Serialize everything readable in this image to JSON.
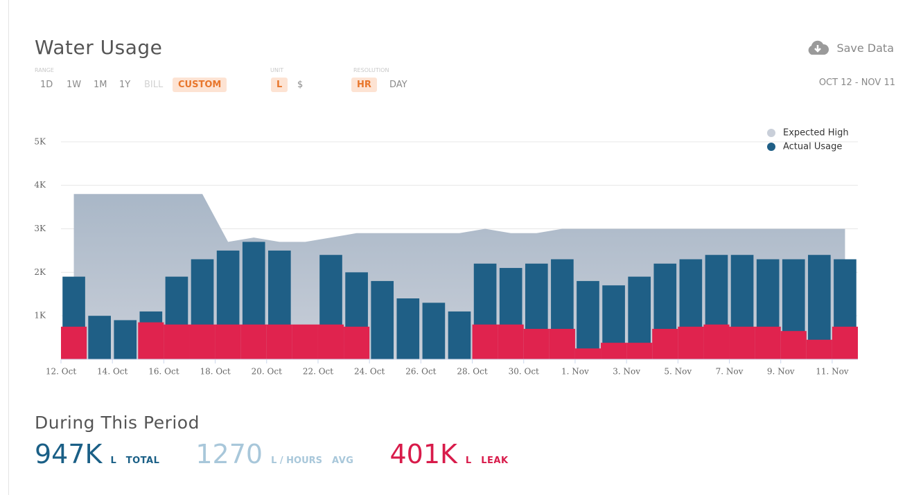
{
  "header": {
    "title": "Water Usage",
    "save": "Save Data",
    "date_range": "OCT 12 - NOV 11",
    "range_caption": "RANGE",
    "range_options": [
      "1D",
      "1W",
      "1M",
      "1Y",
      "BILL",
      "CUSTOM"
    ],
    "unit_caption": "UNIT",
    "unit_options": [
      "L",
      "$"
    ],
    "resolution_caption": "RESOLUTION",
    "resolution_options": [
      "HR",
      "DAY"
    ]
  },
  "summary": {
    "title": "During This Period",
    "total": "947K",
    "total_unit": "L",
    "total_label": "TOTAL",
    "avg": "1270",
    "avg_unit": "L / HOURS",
    "avg_label": "AVG",
    "leak": "401K",
    "leak_unit": "L",
    "leak_label": "LEAK"
  },
  "chart_data": {
    "type": "combo",
    "categories": [
      "12. Oct",
      null,
      "14. Oct",
      null,
      "16. Oct",
      null,
      "18. Oct",
      null,
      "20. Oct",
      null,
      "22. Oct",
      null,
      "24. Oct",
      null,
      "26. Oct",
      null,
      "28. Oct",
      null,
      "30. Oct",
      null,
      "1. Nov",
      null,
      "3. Nov",
      null,
      "5. Nov",
      null,
      "7. Nov",
      null,
      "9. Nov",
      null,
      "11. Nov"
    ],
    "series": [
      {
        "name": "Expected High",
        "kind": "area",
        "color": "#a9b7c7",
        "legend_color": "#c9cfd9",
        "values": [
          3800,
          3800,
          3800,
          3800,
          3800,
          3800,
          2700,
          2800,
          2700,
          2700,
          2800,
          2900,
          2900,
          2900,
          2900,
          2900,
          3000,
          2900,
          2900,
          3000,
          3000,
          3000,
          3000,
          3000,
          3000,
          3000,
          3000,
          3000,
          3000,
          3000,
          3000
        ]
      },
      {
        "name": "Actual Usage",
        "kind": "bar",
        "color": "#1f5f86",
        "values": [
          1900,
          1000,
          900,
          1100,
          1900,
          2300,
          2500,
          2700,
          2500,
          700,
          2400,
          2000,
          1800,
          1400,
          1300,
          1100,
          2200,
          2100,
          2200,
          2300,
          1800,
          1700,
          1900,
          2200,
          2300,
          2400,
          2400,
          2300,
          2300,
          2400,
          2300
        ]
      }
    ],
    "leak": {
      "color": "#e0234e",
      "values": [
        750,
        0,
        0,
        850,
        800,
        800,
        800,
        800,
        800,
        800,
        800,
        750,
        0,
        0,
        0,
        0,
        800,
        800,
        700,
        700,
        250,
        380,
        380,
        700,
        750,
        800,
        750,
        750,
        650,
        450,
        750
      ]
    },
    "ylim": [
      0,
      5300
    ],
    "yticks": [
      {
        "value": 1000,
        "label": "1K"
      },
      {
        "value": 2000,
        "label": "2K"
      },
      {
        "value": 3000,
        "label": "3K"
      },
      {
        "value": 4000,
        "label": "4K"
      },
      {
        "value": 5000,
        "label": "5K"
      }
    ],
    "grid": true,
    "legend": "top-right"
  }
}
